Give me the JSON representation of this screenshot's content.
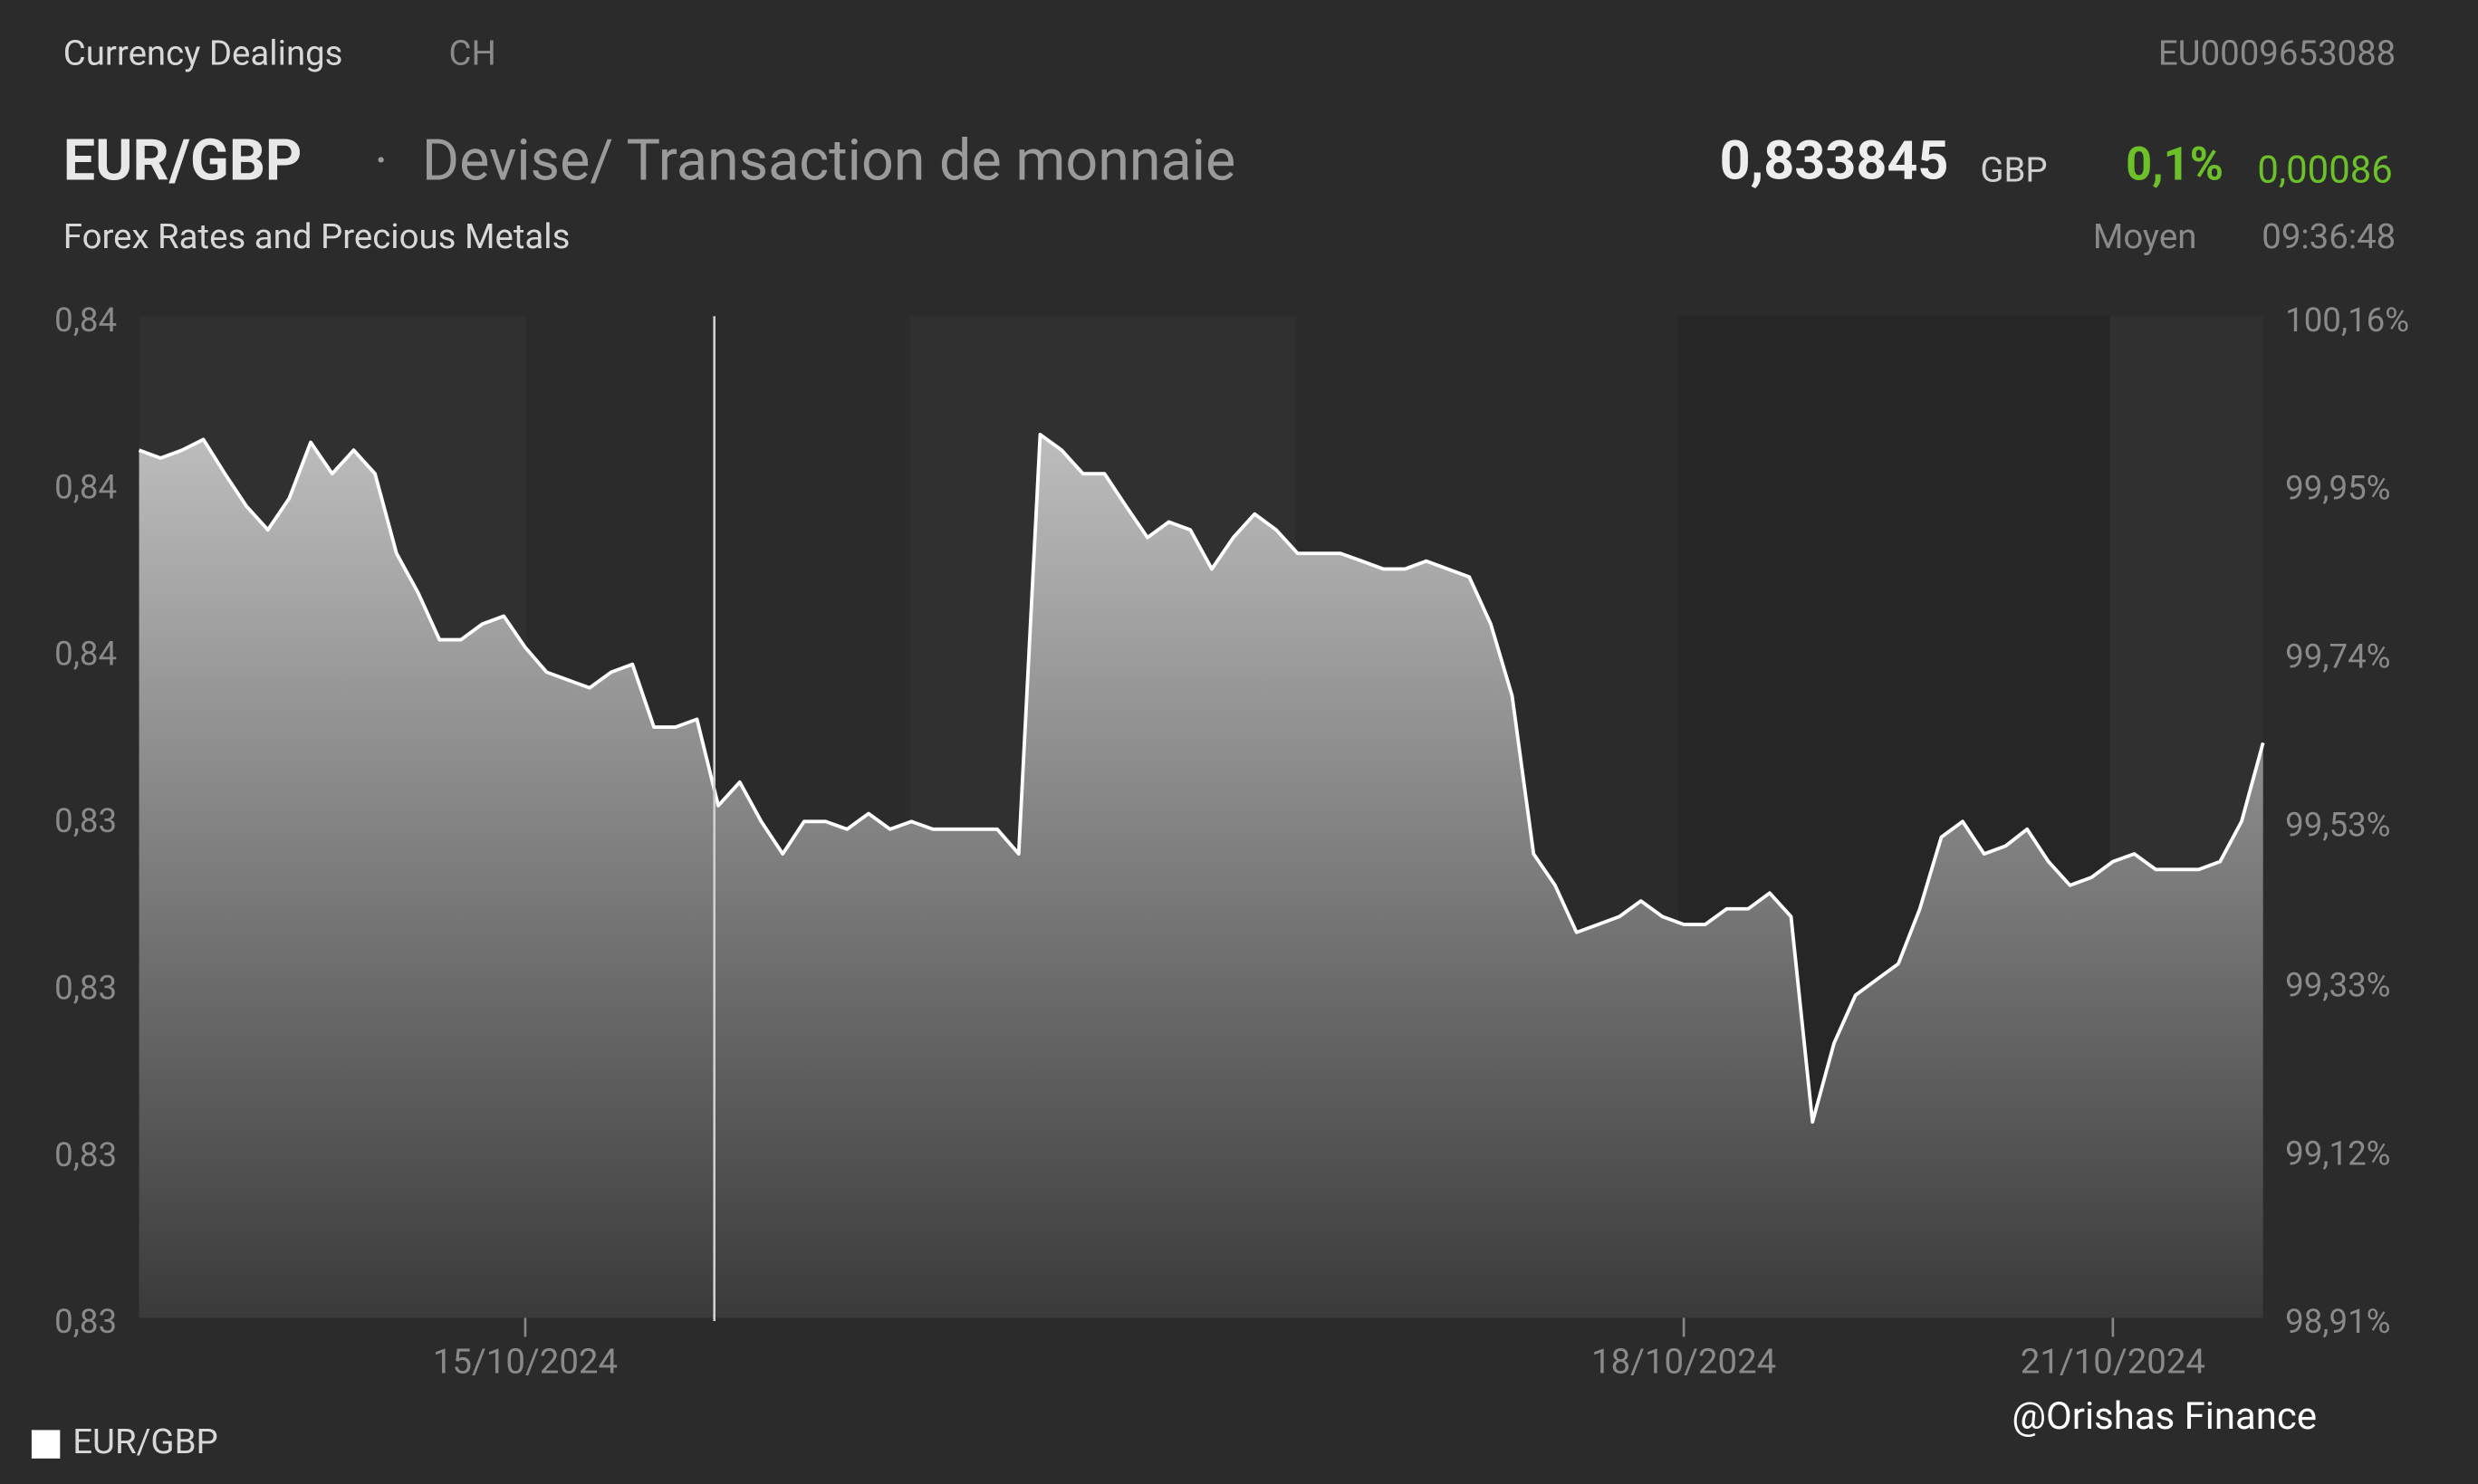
{
  "header": {
    "source": "Currency Dealings",
    "country": "CH",
    "isin": "EU0009653088",
    "symbol": "EUR/GBP",
    "separator": "·",
    "description": "Devise/ Transaction de monnaie",
    "price": "0,833845",
    "currency": "GBP",
    "change_percent": "0,1%",
    "change": "0,00086",
    "category": "Forex Rates and Precious Metals",
    "price_type": "Moyen",
    "time": "09:36:48"
  },
  "watermark": "@Orishas Finance",
  "chart_data": {
    "type": "line",
    "categories": [
      null,
      null,
      null,
      null,
      null,
      null,
      null,
      null,
      null,
      null,
      null,
      null,
      null,
      null,
      null,
      null,
      null,
      null,
      "15/10/2024",
      null,
      null,
      null,
      null,
      null,
      null,
      null,
      null,
      null,
      null,
      null,
      null,
      null,
      null,
      null,
      null,
      null,
      null,
      null,
      null,
      null,
      null,
      null,
      null,
      null,
      null,
      null,
      null,
      null,
      null,
      null,
      null,
      null,
      null,
      null,
      null,
      null,
      null,
      null,
      null,
      null,
      null,
      null,
      null,
      null,
      null,
      null,
      null,
      null,
      null,
      null,
      null,
      null,
      "18/10/2024",
      null,
      null,
      null,
      null,
      null,
      null,
      null,
      null,
      null,
      null,
      null,
      null,
      null,
      null,
      null,
      null,
      null,
      null,
      null,
      "21/10/2024",
      null,
      null,
      null,
      null,
      null,
      null,
      null
    ],
    "series": [
      {
        "name": "EUR/GBP",
        "color": "#ffffff",
        "values": [
          0.8377,
          0.83762,
          0.8377,
          0.83781,
          0.83746,
          0.83713,
          0.83689,
          0.83721,
          0.83778,
          0.83746,
          0.8377,
          0.83746,
          0.83665,
          0.83625,
          0.83577,
          0.83577,
          0.83593,
          0.83601,
          0.83569,
          0.83544,
          0.83536,
          0.83528,
          0.83544,
          0.83552,
          0.83488,
          0.83488,
          0.83496,
          0.83408,
          0.83432,
          0.83392,
          0.83359,
          0.83392,
          0.83392,
          0.83384,
          0.834,
          0.83384,
          0.83392,
          0.83384,
          0.83384,
          0.83384,
          0.83384,
          0.83359,
          0.83786,
          0.8377,
          0.83746,
          0.83746,
          0.83713,
          0.83681,
          0.83697,
          0.83689,
          0.83649,
          0.83681,
          0.83705,
          0.83689,
          0.83665,
          0.83665,
          0.83665,
          0.83657,
          0.83649,
          0.83649,
          0.83657,
          0.83649,
          0.83641,
          0.83593,
          0.8352,
          0.83359,
          0.83327,
          0.83279,
          0.83287,
          0.83295,
          0.83311,
          0.83295,
          0.83287,
          0.83287,
          0.83303,
          0.83303,
          0.83319,
          0.83295,
          0.83086,
          0.83166,
          0.83215,
          0.83231,
          0.83247,
          0.83303,
          0.83376,
          0.83392,
          0.83359,
          0.83367,
          0.83384,
          0.83351,
          0.83327,
          0.83335,
          0.83351,
          0.83359,
          0.83343,
          0.83343,
          0.83343,
          0.83351,
          0.83392,
          0.83472
        ]
      }
    ],
    "ylim": [
      0.8288,
      0.839
    ],
    "yticks": [
      {
        "value": 0.839,
        "label": "0,84"
      },
      {
        "value": 0.8373,
        "label": "0,84"
      },
      {
        "value": 0.8356,
        "label": "0,84"
      },
      {
        "value": 0.8339,
        "label": "0,83"
      },
      {
        "value": 0.8322,
        "label": "0,83"
      },
      {
        "value": 0.8305,
        "label": "0,83"
      },
      {
        "value": 0.8288,
        "label": "0,83"
      }
    ],
    "y2lim": [
      98.91,
      100.16
    ],
    "y2ticks": [
      {
        "value": 100.16,
        "label": "100,16%"
      },
      {
        "value": 99.95,
        "label": "99,95%"
      },
      {
        "value": 99.74,
        "label": "99,74%"
      },
      {
        "value": 99.53,
        "label": "99,53%"
      },
      {
        "value": 99.33,
        "label": "99,33%"
      },
      {
        "value": 99.12,
        "label": "99,12%"
      },
      {
        "value": 98.91,
        "label": "98,91%"
      }
    ],
    "legend": "bottom-left"
  }
}
